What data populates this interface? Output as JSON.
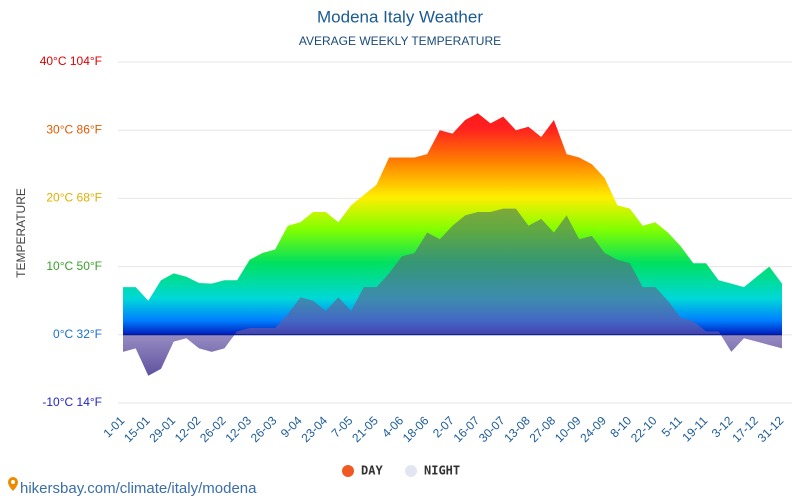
{
  "chart_data": {
    "type": "area",
    "title": "Modena Italy Weather",
    "subtitle": "AVERAGE WEEKLY TEMPERATURE",
    "y_label": "TEMPERATURE",
    "categories": [
      "1-01",
      null,
      "15-01",
      null,
      "29-01",
      null,
      "12-02",
      null,
      "26-02",
      null,
      "12-03",
      null,
      "26-03",
      null,
      "9-04",
      null,
      "23-04",
      null,
      "7-05",
      null,
      "21-05",
      null,
      "4-06",
      null,
      "18-06",
      null,
      "2-07",
      null,
      "16-07",
      null,
      "30-07",
      null,
      "13-08",
      null,
      "27-08",
      null,
      "10-09",
      null,
      "24-09",
      null,
      "8-10",
      null,
      "22-10",
      null,
      "5-11",
      null,
      "19-11",
      null,
      "3-12",
      null,
      "17-12",
      null,
      "31-12"
    ],
    "series": [
      {
        "name": "DAY",
        "color": "#f05a22",
        "values": [
          7,
          7,
          5,
          8,
          9,
          8.5,
          7.6,
          7.5,
          8,
          8,
          11,
          12,
          12.5,
          16,
          16.5,
          18,
          18,
          16.5,
          19,
          20.5,
          22,
          26,
          26,
          26,
          26.5,
          30,
          29.5,
          31.5,
          32.5,
          31,
          32,
          30,
          30.5,
          29,
          31.5,
          26.5,
          26,
          25,
          23,
          19,
          18.5,
          16,
          16.5,
          15,
          13,
          10.5,
          10.5,
          8,
          7.5,
          7,
          8.5,
          10,
          7.5
        ]
      },
      {
        "name": "NIGHT",
        "color": "#e2e6f2",
        "values": [
          -2.5,
          -2,
          -6,
          -5,
          -1,
          -0.5,
          -2,
          -2.5,
          -2,
          0.5,
          1,
          1,
          1,
          3,
          5.5,
          5,
          3.5,
          5.5,
          3.5,
          7,
          7,
          9,
          11.5,
          12,
          15,
          14,
          16,
          17.5,
          18,
          18,
          18.5,
          18.5,
          16,
          17,
          15,
          17.5,
          14,
          14.5,
          12,
          11,
          10.5,
          7,
          7,
          5,
          2.5,
          2,
          0.5,
          0.5,
          -2.5,
          -0.5,
          -1,
          -1.5,
          -2
        ]
      }
    ],
    "ylim": [
      -10,
      40
    ],
    "yticks": [
      {
        "value": -10,
        "label": "-10°C 14°F"
      },
      {
        "value": 0,
        "label": "0°C 32°F"
      },
      {
        "value": 10,
        "label": "10°C 50°F"
      },
      {
        "value": 20,
        "label": "20°C 68°F"
      },
      {
        "value": 30,
        "label": "30°C 86°F"
      },
      {
        "value": 40,
        "label": "40°C 104°F"
      }
    ],
    "ytick_colors": [
      "#2222cc",
      "#1a6fd0",
      "#3aa02a",
      "#e0b000",
      "#e05a00",
      "#e00000"
    ],
    "grid": true,
    "watermark": "hikersbay.com/climate/italy/modena"
  }
}
